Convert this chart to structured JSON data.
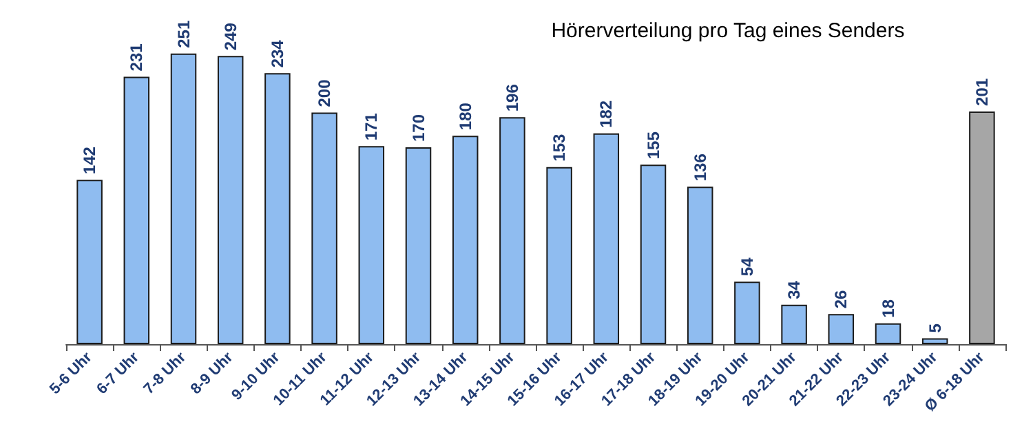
{
  "chart_data": {
    "type": "bar",
    "title": "Hörerverteilung pro Tag eines Senders",
    "categories": [
      "5-6 Uhr",
      "6-7 Uhr",
      "7-8 Uhr",
      "8-9 Uhr",
      "9-10 Uhr",
      "10-11 Uhr",
      "11-12 Uhr",
      "12-13 Uhr",
      "13-14 Uhr",
      "14-15 Uhr",
      "15-16 Uhr",
      "16-17 Uhr",
      "17-18 Uhr",
      "18-19 Uhr",
      "19-20 Uhr",
      "20-21 Uhr",
      "21-22 Uhr",
      "22-23 Uhr",
      "23-24 Uhr",
      "Ø 6-18 Uhr"
    ],
    "values": [
      142,
      231,
      251,
      249,
      234,
      200,
      171,
      170,
      180,
      196,
      153,
      182,
      155,
      136,
      54,
      34,
      26,
      18,
      5,
      201
    ],
    "colors": [
      "#8fbcf0",
      "#8fbcf0",
      "#8fbcf0",
      "#8fbcf0",
      "#8fbcf0",
      "#8fbcf0",
      "#8fbcf0",
      "#8fbcf0",
      "#8fbcf0",
      "#8fbcf0",
      "#8fbcf0",
      "#8fbcf0",
      "#8fbcf0",
      "#8fbcf0",
      "#8fbcf0",
      "#8fbcf0",
      "#8fbcf0",
      "#8fbcf0",
      "#8fbcf0",
      "#a6a6a6"
    ],
    "data_labels": true
  }
}
